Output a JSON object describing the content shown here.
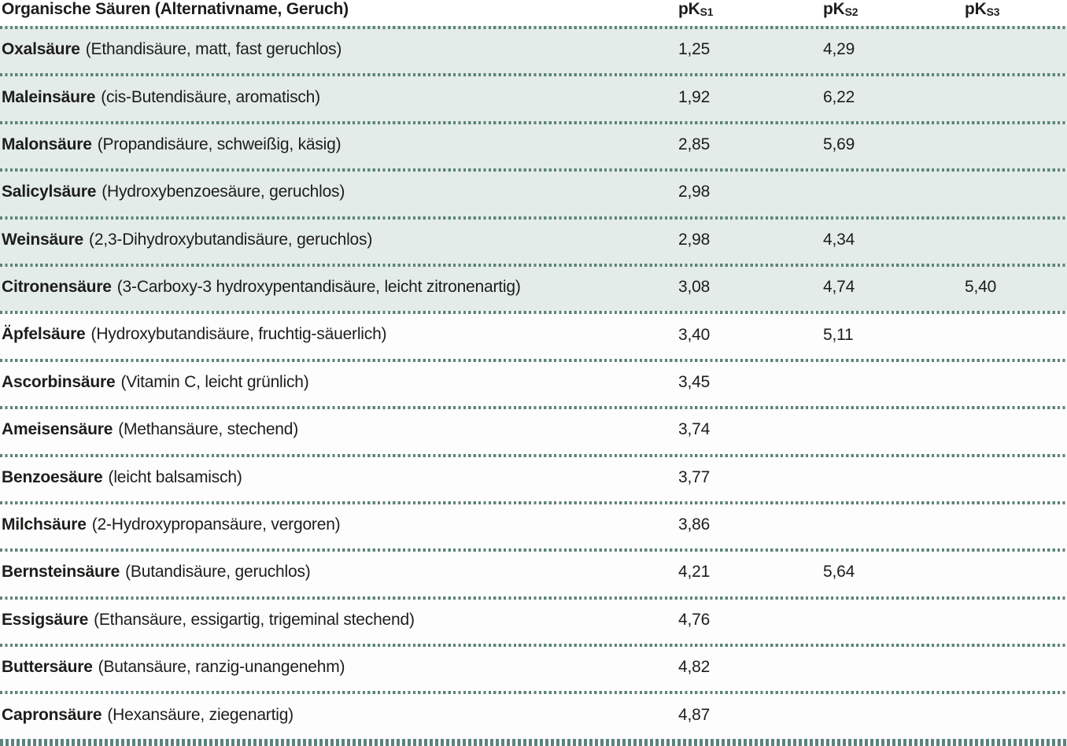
{
  "table": {
    "title": "Organische Säuren (Alternativname, Geruch)",
    "columns": [
      {
        "base": "pK",
        "sub": "S1"
      },
      {
        "base": "pK",
        "sub": "S2"
      },
      {
        "base": "pK",
        "sub": "S3"
      }
    ],
    "colors": {
      "shaded_row_bg": "#e3ece8",
      "dotted_line": "#5d837c",
      "text": "#1d1d1b"
    },
    "rows": [
      {
        "name": "Oxalsäure",
        "desc": "(Ethandisäure, matt, fast geruchlos)",
        "pk1": "1,25",
        "pk2": "4,29",
        "pk3": ""
      },
      {
        "name": "Maleinsäure",
        "desc": "(cis-Butendisäure, aromatisch)",
        "pk1": "1,92",
        "pk2": "6,22",
        "pk3": ""
      },
      {
        "name": "Malonsäure",
        "desc": "(Propandisäure, schweißig, käsig)",
        "pk1": "2,85",
        "pk2": "5,69",
        "pk3": ""
      },
      {
        "name": "Salicylsäure",
        "desc": "(Hydroxybenzoesäure, geruchlos)",
        "pk1": "2,98",
        "pk2": "",
        "pk3": ""
      },
      {
        "name": "Weinsäure",
        "desc": "(2,3-Dihydroxybutandisäure, geruchlos)",
        "pk1": "2,98",
        "pk2": "4,34",
        "pk3": ""
      },
      {
        "name": "Citronensäure",
        "desc": "(3-Carboxy-3 hydroxypentandisäure, leicht zitronenartig)",
        "pk1": "3,08",
        "pk2": "4,74",
        "pk3": "5,40"
      },
      {
        "name": "Äpfelsäure",
        "desc": "(Hydroxybutandisäure, fruchtig-säuerlich)",
        "pk1": "3,40",
        "pk2": "5,11",
        "pk3": ""
      },
      {
        "name": "Ascorbinsäure",
        "desc": "(Vitamin C, leicht grünlich)",
        "pk1": "3,45",
        "pk2": "",
        "pk3": ""
      },
      {
        "name": "Ameisensäure",
        "desc": "(Methansäure, stechend)",
        "pk1": "3,74",
        "pk2": "",
        "pk3": ""
      },
      {
        "name": "Benzoesäure",
        "desc": "(leicht balsamisch)",
        "pk1": "3,77",
        "pk2": "",
        "pk3": ""
      },
      {
        "name": "Milchsäure",
        "desc": "(2-Hydroxypropansäure, vergoren)",
        "pk1": "3,86",
        "pk2": "",
        "pk3": ""
      },
      {
        "name": "Bernsteinsäure",
        "desc": "(Butandisäure, geruchlos)",
        "pk1": "4,21",
        "pk2": "5,64",
        "pk3": ""
      },
      {
        "name": "Essigsäure",
        "desc": "(Ethansäure, essigartig, trigeminal stechend)",
        "pk1": "4,76",
        "pk2": "",
        "pk3": ""
      },
      {
        "name": "Buttersäure",
        "desc": "(Butansäure, ranzig-unangenehm)",
        "pk1": "4,82",
        "pk2": "",
        "pk3": ""
      },
      {
        "name": "Capronsäure",
        "desc": "(Hexansäure, ziegenartig)",
        "pk1": "4,87",
        "pk2": "",
        "pk3": ""
      }
    ]
  }
}
